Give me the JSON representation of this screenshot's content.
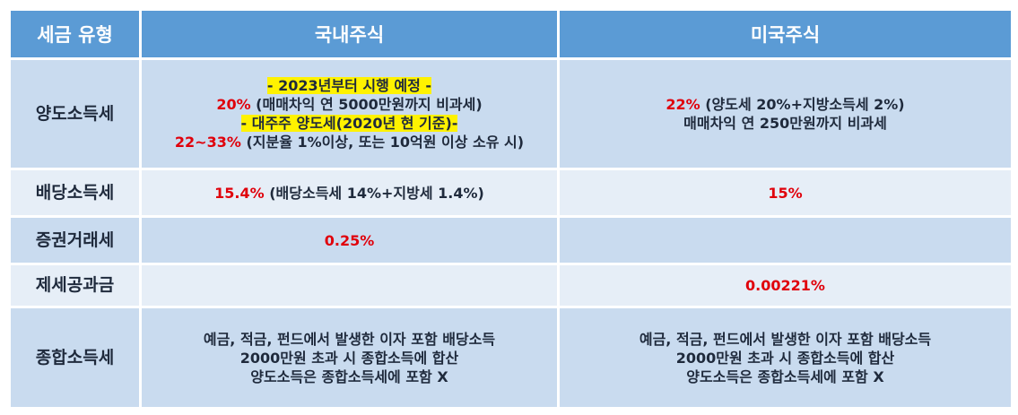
{
  "header": {
    "col_type": "세금 유형",
    "col_domestic": "국내주식",
    "col_us": "미국주식"
  },
  "rows": {
    "capital_gains": {
      "label": "양도소득세",
      "domestic": {
        "line1": "- 2023년부터 시행 예정 -",
        "line2_rate": "20%",
        "line2_text": " (매매차익 연 5000만원까지 비과세)",
        "line3": "- 대주주 양도세(2020년 현 기준)-",
        "line4_rate": "22~33%",
        "line4_text": " (지분율 1%이상, 또는 10억원 이상 소유 시)"
      },
      "us": {
        "line1_rate": "22%",
        "line1_text": " (양도세 20%+지방소득세 2%)",
        "line2": "매매차익 연 250만원까지 비과세"
      }
    },
    "dividend": {
      "label": "배당소득세",
      "domestic_rate": "15.4%",
      "domestic_text": " (배당소득세 14%+지방세 1.4%)",
      "us_rate": "15%"
    },
    "transaction": {
      "label": "증권거래세",
      "domestic_rate": "0.25%",
      "us": ""
    },
    "fees": {
      "label": "제세공과금",
      "domestic": "",
      "us_rate": "0.00221%"
    },
    "comprehensive": {
      "label": "종합소득세",
      "domestic": {
        "line1": "예금, 적금, 펀드에서 발생한 이자 포함 배당소득",
        "line2": "2000만원 초과 시 종합소득에 합산",
        "line3": "양도소득은 종합소득세에 포함 X"
      },
      "us": {
        "line1": "예금, 적금, 펀드에서 발생한 이자 포함 배당소득",
        "line2": "2000만원 초과 시 종합소득에 합산",
        "line3": "양도소득은 종합소득세에 포함 X"
      }
    }
  },
  "colors": {
    "header_bg": "#5b9bd5",
    "row_dark": "#c9dbef",
    "row_light": "#e6eef7",
    "highlight": "#fff200",
    "rate_red": "#e0000b"
  }
}
